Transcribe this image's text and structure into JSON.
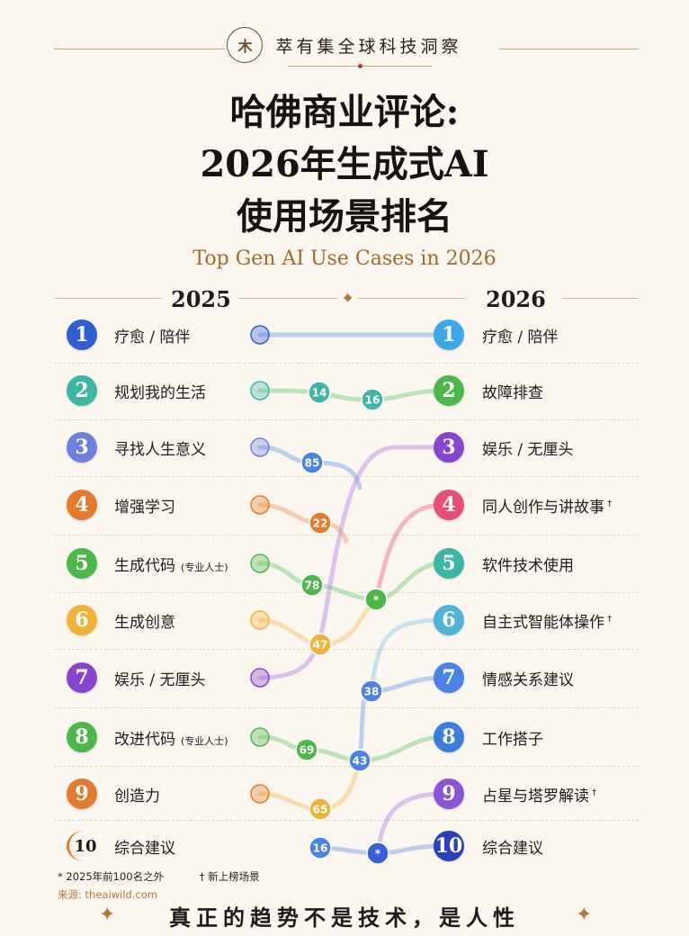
{
  "brand": {
    "logo": "木",
    "name": "萃有集全球科技洞察"
  },
  "title": {
    "line1": "哈佛商业评论:",
    "line2": "2026年生成式AI",
    "line3": "使用场景排名"
  },
  "subtitle": "Top Gen AI Use Cases in 2026",
  "columns": {
    "left_year": "2025",
    "right_year": "2026"
  },
  "left_list": [
    {
      "rank": "1",
      "label": "疗愈 / 陪伴",
      "note": "",
      "color": "#2f5fd0"
    },
    {
      "rank": "2",
      "label": "规划我的生活",
      "note": "",
      "color": "#3cb7a5"
    },
    {
      "rank": "3",
      "label": "寻找人生意义",
      "note": "",
      "color": "#6f7fe0"
    },
    {
      "rank": "4",
      "label": "增强学习",
      "note": "",
      "color": "#e57a2c"
    },
    {
      "rank": "5",
      "label": "生成代码",
      "note": "(专业人士)",
      "color": "#4cb84a"
    },
    {
      "rank": "6",
      "label": "生成创意",
      "note": "",
      "color": "#f0b33a"
    },
    {
      "rank": "7",
      "label": "娱乐 / 无厘头",
      "note": "",
      "color": "#8744cc"
    },
    {
      "rank": "8",
      "label": "改进代码",
      "note": "(专业人士)",
      "color": "#4cb84a"
    },
    {
      "rank": "9",
      "label": "创造力",
      "note": "",
      "color": "#e57a2c"
    },
    {
      "rank": "10",
      "label": "综合建议",
      "note": "",
      "color": ""
    }
  ],
  "right_list": [
    {
      "rank": "1",
      "label": "疗愈 / 陪伴",
      "mark": "",
      "color": "#3aa9e6"
    },
    {
      "rank": "2",
      "label": "故障排查",
      "mark": "",
      "color": "#4cb84a"
    },
    {
      "rank": "3",
      "label": "娱乐 / 无厘头",
      "mark": "",
      "color": "#8744cc"
    },
    {
      "rank": "4",
      "label": "同人创作与讲故事",
      "mark": "†",
      "color": "#e84e7a"
    },
    {
      "rank": "5",
      "label": "软件技术使用",
      "mark": "",
      "color": "#3cb7a5"
    },
    {
      "rank": "6",
      "label": "自主式智能体操作",
      "mark": "†",
      "color": "#4fb3d9"
    },
    {
      "rank": "7",
      "label": "情感关系建议",
      "mark": "",
      "color": "#4a82e8"
    },
    {
      "rank": "8",
      "label": "工作搭子",
      "mark": "",
      "color": "#3b7ee0"
    },
    {
      "rank": "9",
      "label": "占星与塔罗解读",
      "mark": "†",
      "color": "#8a54d8"
    },
    {
      "rank": "10",
      "label": "综合建议",
      "mark": "",
      "color": "#2b3fb8"
    }
  ],
  "flow_badges": [
    {
      "text": "14",
      "color": "#3cb7a5"
    },
    {
      "text": "16",
      "color": "#3cb7a5"
    },
    {
      "text": "85",
      "color": "#4a82e8"
    },
    {
      "text": "22",
      "color": "#e57a2c"
    },
    {
      "text": "78",
      "color": "#4cb84a"
    },
    {
      "text": "*",
      "color": "#4cb84a"
    },
    {
      "text": "47",
      "color": "#f0b33a"
    },
    {
      "text": "38",
      "color": "#4a82e8"
    },
    {
      "text": "69",
      "color": "#4cb84a"
    },
    {
      "text": "43",
      "color": "#4a82e8"
    },
    {
      "text": "65",
      "color": "#f0b33a"
    },
    {
      "text": "16",
      "color": "#4a82e8"
    },
    {
      "text": "*",
      "color": "#3b5fd8"
    }
  ],
  "footnotes": {
    "outside": "* 2025年前100名之外",
    "new": "† 新上榜场景"
  },
  "source": "来源: theaiwild.com",
  "slogan": "真正的趋势不是技术，是人性",
  "decor": {
    "star": "✦"
  }
}
